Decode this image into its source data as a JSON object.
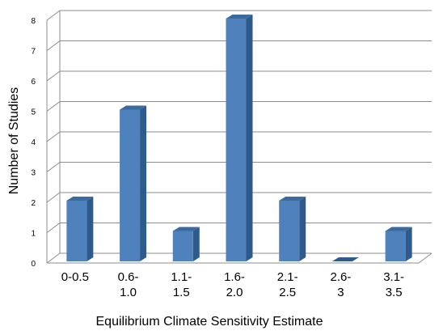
{
  "chart_data": {
    "type": "bar",
    "categories": [
      [
        "0-0.5"
      ],
      [
        "0.6-",
        "1.0"
      ],
      [
        "1.1-",
        "1.5"
      ],
      [
        "1.6-",
        "2.0"
      ],
      [
        "2.1-",
        "2.5"
      ],
      [
        "2.6-",
        "3"
      ],
      [
        "3.1-",
        "3.5"
      ]
    ],
    "values": [
      2,
      5,
      1,
      8,
      2,
      0,
      1
    ],
    "xlabel": "Equilibrium Climate Sensitivity Estimate",
    "ylabel": "Number of Studies",
    "ylim": [
      0,
      8
    ],
    "yticks": [
      "0",
      "1",
      "2",
      "3",
      "4",
      "5",
      "6",
      "7",
      "8"
    ],
    "grid": true,
    "style": "3d-column",
    "colors": {
      "bar_front": "#4f81bd",
      "bar_side": "#2f5b8c",
      "bar_top": "#3d6a9e",
      "grid": "#8c8c8c"
    }
  }
}
